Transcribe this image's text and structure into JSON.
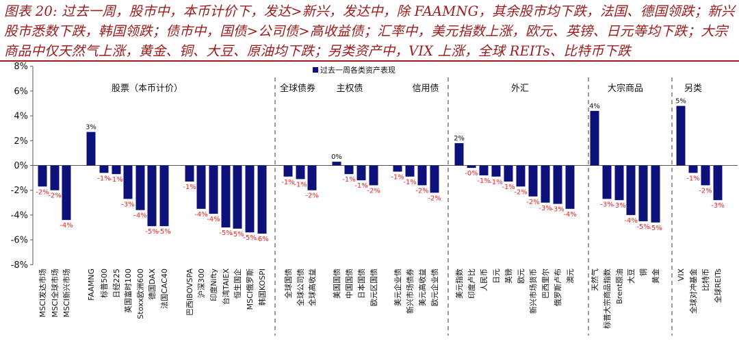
{
  "caption": "图表 20: 过去一周，股市中，本币计价下，发达>新兴，发达中，除 FAAMNG，其余股市均下跌，法国、德国领跌；新兴股市悉数下跌，韩国领跌；债市中，国债>公司债>高收益债；汇率中，美元指数上涨，欧元、英镑、日元等均下跌；大宗商品中仅天然气上涨，黄金、铜、大豆、原油均下跌；另类资产中，VIX 上涨，全球 REITs、比特币下跌",
  "chart_data": {
    "type": "bar",
    "title": "过去一周各类资产表现",
    "legend": "过去一周各类资产表现",
    "ylim": [
      -8,
      8
    ],
    "yticks": [
      "-8%",
      "-6%",
      "-4%",
      "-2%",
      "0%",
      "2%",
      "4%",
      "6%",
      "8%"
    ],
    "categories": [
      "MSCI发达市场",
      "MSCI全球市场",
      "MSCI新兴市场",
      "FAAMNG",
      "标普500",
      "日经225",
      "英国富时100",
      "Stoxx欧洲600",
      "德国DAX",
      "法国CAC40",
      "巴西IBOVSPA",
      "沪深300",
      "印度Nifty",
      "台湾TAIEX",
      "恒生国企",
      "MSCI俄罗斯",
      "韩国KOSPI",
      "全球国债",
      "全球公司债",
      "全球高收益",
      "美国国债",
      "中国国债",
      "日本国债",
      "欧元区国债",
      "美元企业债",
      "新兴市场债券",
      "美元高收益",
      "欧元企业债",
      "美元指数",
      "印度卢比",
      "人民币",
      "日元",
      "英镑",
      "欧元",
      "新兴市场货币",
      "巴西里尔",
      "俄罗斯卢布",
      "澳元",
      "天然气",
      "标普大宗商品指数",
      "Brent原油",
      "大豆",
      "铜",
      "黄金",
      "VIX",
      "全球对冲基金",
      "比特币",
      "全球REITs"
    ],
    "values": [
      -1.7,
      -2.0,
      -4.4,
      2.7,
      -0.6,
      -0.7,
      -2.7,
      -3.6,
      -4.9,
      -4.9,
      -1.3,
      -3.5,
      -3.9,
      -5.0,
      -5.1,
      -5.4,
      -5.5,
      -0.9,
      -1.1,
      -2.0,
      0.3,
      -0.7,
      -1.2,
      -1.6,
      -0.5,
      -0.9,
      -1.6,
      -2.2,
      1.8,
      -0.2,
      -0.8,
      -0.9,
      -1.3,
      -1.7,
      -2.5,
      -3.0,
      -3.1,
      -3.5,
      4.4,
      -2.7,
      -2.8,
      -4.0,
      -4.5,
      -4.6,
      4.8,
      -0.6,
      -1.6,
      -2.8
    ],
    "labels": [
      "-2%",
      "-2%",
      "-4%",
      "3%",
      "-1%",
      "-1%",
      "-3%",
      "-4%",
      "-5%",
      "-5%",
      "-1%",
      "-4%",
      "-4%",
      "-5%",
      "-5%",
      "-5%",
      "-6%",
      "-1%",
      "-1%",
      "-2%",
      "0%",
      "-1%",
      "-1%",
      "-2%",
      "-1%",
      "-1%",
      "-2%",
      "-2%",
      "2%",
      "-0%",
      "-1%",
      "-1%",
      "-1%",
      "-2%",
      "-2%",
      "-3%",
      "-3%",
      "-4%",
      "4%",
      "-3%",
      "-3%",
      "-4%",
      "-5%",
      "-5%",
      "5%",
      "-1%",
      "-2%",
      "-3%"
    ],
    "groups": [
      "股票（本币计价）",
      "全球债券",
      "主权债",
      "信用债",
      "外汇",
      "大宗商品",
      "另类"
    ],
    "bar_color": "#0c127a",
    "positive_label_color": "#111111",
    "negative_label_color": "#ee2222"
  }
}
